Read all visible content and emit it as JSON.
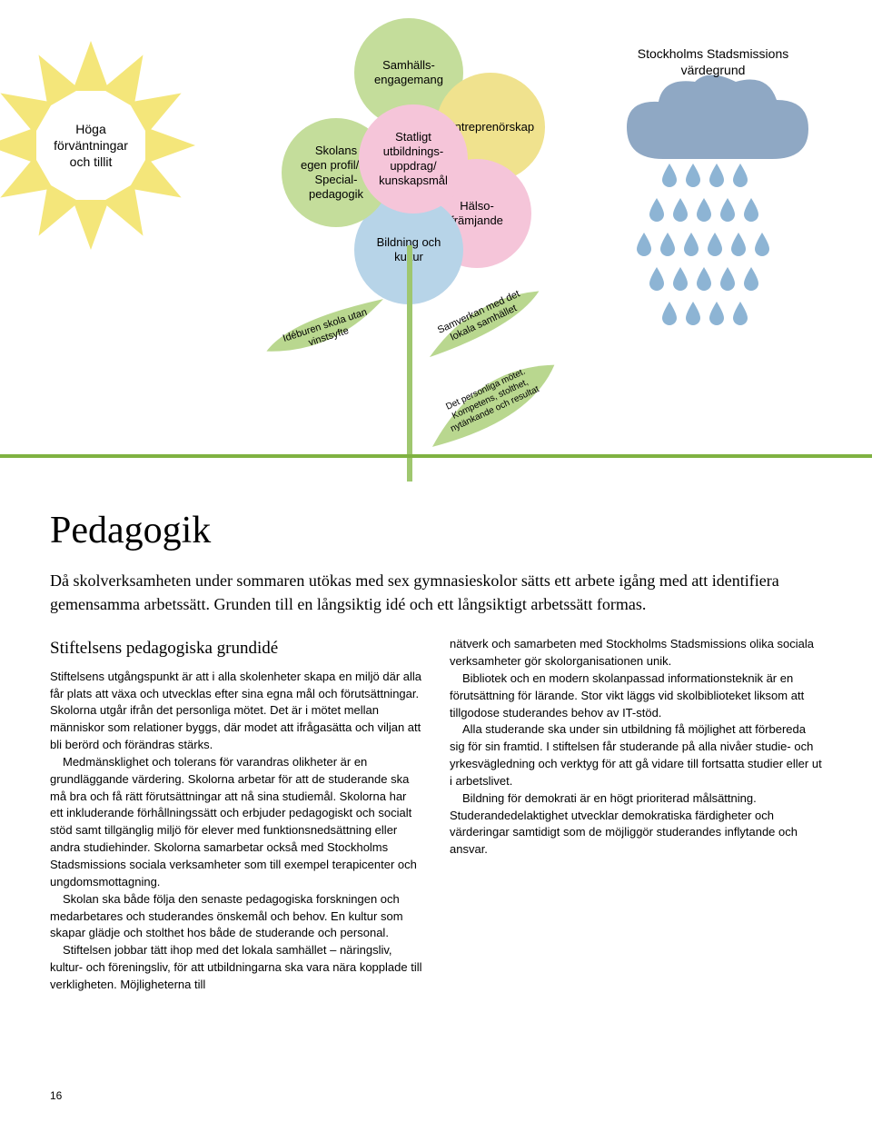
{
  "colors": {
    "sun": "#f4e67a",
    "petal_green": "#c4dd9b",
    "petal_pink": "#f5c5d9",
    "petal_yellow": "#f0e28e",
    "petal_blue": "#b7d4e8",
    "stem": "#9fc76f",
    "leaf": "#b9d78f",
    "cloud": "#8fa8c4",
    "drop": "#8db4d4",
    "ground": "#7fb241"
  },
  "sun_label": "Höga\nförväntningar\noch tillit",
  "cloud_label": "Stockholms Stadsmissions\nvärdegrund",
  "petals": {
    "top": "Samhälls-\nengagemang",
    "right": "Entreprenörskap",
    "bottom_right": "Hälso-\nfrämjande",
    "bottom": "Bildning och\nkultur",
    "bottom_left": "Skolans\negen profil/ex\nSpecial-\npedagogik",
    "center": "Statligt\nutbildnings-\nuppdrag/\nkunskapsmål"
  },
  "leaves": {
    "left": "Idéburen skola utan\nvinstsyfte",
    "right_top": "Samverkan med det\nlokala samhället",
    "right_bottom": "Det personliga mötet.\nKompetens, stolthet,\nnytänkande och resultat"
  },
  "rain_rows": [
    4,
    5,
    6,
    5,
    4
  ],
  "heading": "Pedagogik",
  "intro": "Då skolverksamheten under sommaren utökas med sex gymnasieskolor sätts ett arbete igång med att identifiera gemensamma arbetssätt. Grunden till en långsiktig idé och ett långsiktigt arbetssätt formas.",
  "subheading": "Stiftelsens pedagogiska grundidé",
  "col1": [
    "Stiftelsens utgångspunkt är att i alla skolenheter skapa en miljö där alla får plats att växa och utvecklas efter sina egna mål och förutsättningar. Skolorna utgår ifrån det personliga mötet. Det är i mötet mellan människor som relationer byggs, där modet att ifrågasätta och viljan att bli berörd och förändras stärks.",
    "Medmänsklighet och tolerans för varandras olikheter är en grundläggande värdering. Skolorna arbetar för att de studerande ska må bra och få rätt förutsättningar att nå sina studiemål. Skolorna har ett inkluderande förhållningssätt och erbjuder pedagogiskt och socialt stöd samt tillgänglig miljö för elever med funktionsnedsättning eller andra studiehinder. Skolorna samarbetar också med Stockholms Stadsmissions sociala verksamheter som till exempel terapicenter och ungdomsmottagning.",
    "Skolan ska både följa den senaste pedagogiska forskningen och medarbetares och studerandes önskemål och behov. En kultur som skapar glädje och stolthet hos både de studerande och personal.",
    "Stiftelsen jobbar tätt ihop med det lokala samhället – näringsliv, kultur- och föreningsliv, för att utbildningarna ska vara nära kopplade till verkligheten. Möjligheterna till"
  ],
  "col2": [
    "nätverk och samarbeten med Stockholms Stadsmissions olika sociala verksamheter gör skolorganisationen unik.",
    "Bibliotek och en modern skolanpassad informationsteknik är en förutsättning för lärande. Stor vikt läggs vid skolbiblioteket liksom att tillgodose studerandes behov av IT-stöd.",
    "Alla studerande ska under sin utbildning få möjlighet att förbereda sig för sin framtid. I stiftelsen får studerande på alla nivåer studie- och yrkesvägledning och verktyg för att gå vidare till fortsatta studier eller ut i arbetslivet.",
    "Bildning för demokrati är en högt prioriterad målsättning. Studerandedelaktighet utvecklar demokratiska färdigheter och värderingar samtidigt som de möjliggör studerandes inflytande och ansvar."
  ],
  "page_number": "16"
}
